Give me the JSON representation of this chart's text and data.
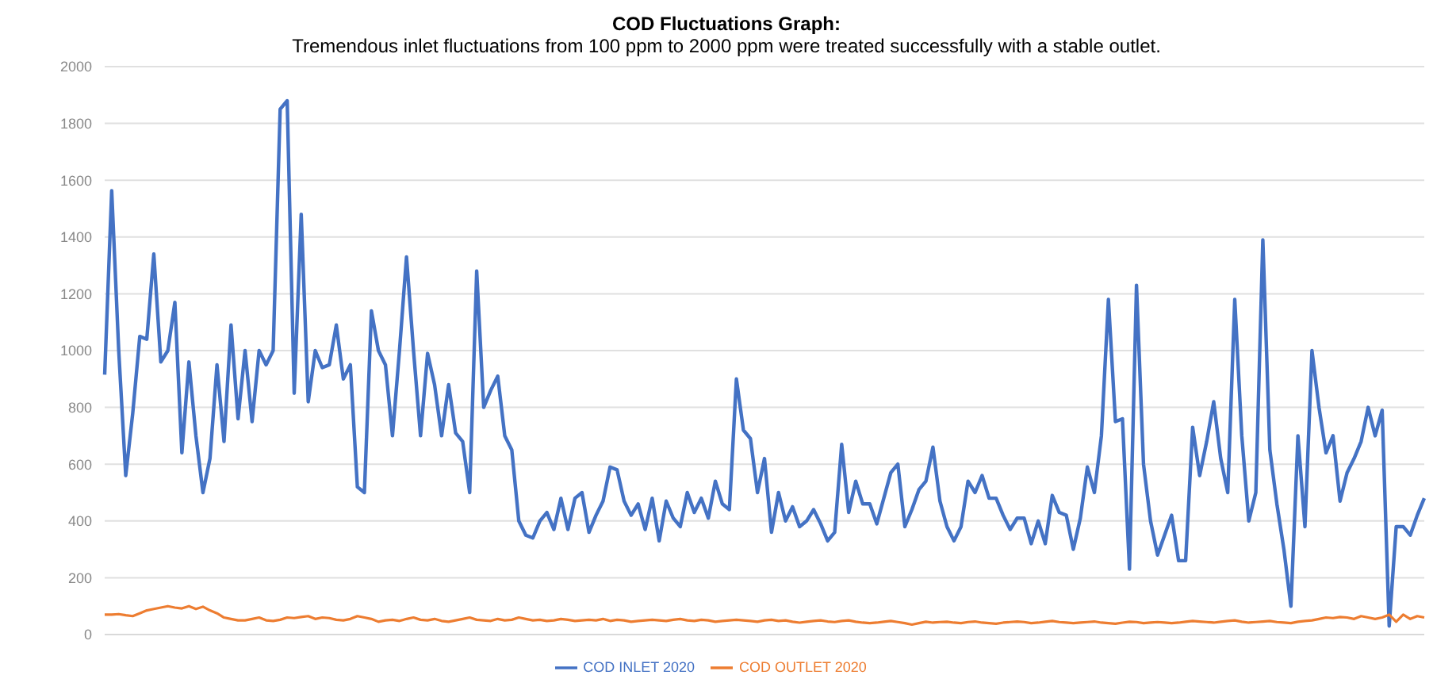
{
  "chart_data": {
    "type": "line",
    "title": "COD Fluctuations Graph:",
    "subtitle": "Tremendous inlet fluctuations from 100 ppm to 2000 ppm were treated successfully with a stable outlet.",
    "categories": [
      null,
      null,
      null,
      null,
      null,
      null,
      null,
      null,
      null,
      null,
      null,
      null,
      null,
      null,
      null,
      null,
      null,
      null,
      null,
      null,
      null,
      null,
      null,
      null,
      null,
      null,
      null,
      null,
      null,
      null,
      null,
      null,
      null,
      null,
      null,
      null,
      null,
      null,
      null,
      null,
      null,
      null,
      null,
      null,
      null,
      null,
      null,
      null,
      null,
      null,
      null,
      null,
      null,
      null,
      null,
      null,
      null,
      null,
      null,
      null,
      null,
      null,
      null,
      null,
      null,
      null,
      null,
      null,
      null,
      null,
      null,
      null,
      null,
      null,
      null,
      null,
      null,
      null,
      null,
      null,
      null,
      null,
      null,
      null,
      null,
      null,
      null,
      null,
      null,
      null,
      null,
      null,
      null,
      null,
      null,
      null,
      null,
      null,
      null,
      null,
      null,
      null,
      null,
      null,
      null,
      null,
      null,
      null,
      null,
      null,
      null,
      null,
      null,
      null,
      null,
      null,
      null,
      null,
      null,
      null,
      null,
      null,
      null,
      null,
      null,
      null,
      null,
      null,
      null,
      null,
      null,
      null,
      null,
      null,
      null,
      null,
      null,
      null,
      null,
      null,
      null,
      null,
      null,
      null,
      null,
      null,
      null,
      null,
      null,
      null,
      null,
      null,
      null,
      null,
      null,
      null,
      null,
      null,
      null,
      null,
      null,
      null,
      null,
      null,
      null,
      null,
      null,
      null,
      null,
      null,
      null,
      null,
      null,
      null,
      null,
      null,
      null,
      null,
      null,
      null,
      null,
      null,
      null,
      null,
      null,
      null,
      null,
      null,
      null
    ],
    "series": [
      {
        "name": "COD INLET 2020",
        "color": "#4472c4",
        "values": [
          915,
          1563,
          1000,
          560,
          780,
          1050,
          1040,
          1340,
          960,
          1000,
          1170,
          640,
          960,
          700,
          500,
          620,
          950,
          680,
          1090,
          760,
          1000,
          750,
          1000,
          950,
          1000,
          1850,
          1880,
          850,
          1480,
          820,
          1000,
          940,
          950,
          1090,
          900,
          950,
          520,
          500,
          1140,
          1000,
          950,
          700,
          1000,
          1330,
          1000,
          700,
          990,
          880,
          700,
          880,
          710,
          680,
          500,
          1280,
          800,
          860,
          910,
          700,
          650,
          400,
          350,
          340,
          400,
          430,
          370,
          480,
          370,
          480,
          500,
          360,
          420,
          470,
          590,
          580,
          470,
          420,
          460,
          370,
          480,
          330,
          470,
          410,
          380,
          500,
          430,
          480,
          410,
          540,
          460,
          440,
          900,
          720,
          690,
          500,
          620,
          360,
          500,
          400,
          450,
          380,
          400,
          440,
          390,
          330,
          360,
          670,
          430,
          540,
          460,
          460,
          390,
          480,
          570,
          600,
          380,
          440,
          510,
          540,
          660,
          470,
          380,
          330,
          380,
          540,
          500,
          560,
          480,
          480,
          420,
          370,
          410,
          410,
          320,
          400,
          320,
          490,
          430,
          420,
          300,
          410,
          590,
          500,
          700,
          1180,
          750,
          760,
          230,
          1230,
          600,
          400,
          280,
          350,
          420,
          260,
          260,
          730,
          560,
          680,
          820,
          620,
          500,
          1180,
          700,
          400,
          500,
          1390,
          650,
          460,
          300,
          100,
          700,
          380,
          1000,
          800,
          640,
          700,
          470,
          570,
          620,
          680,
          800,
          700,
          790,
          30,
          380,
          380,
          350,
          420,
          480
        ]
      },
      {
        "name": "COD OUTLET 2020",
        "color": "#ed7d31",
        "values": [
          70,
          70,
          72,
          68,
          65,
          75,
          85,
          90,
          95,
          100,
          95,
          92,
          100,
          90,
          98,
          85,
          75,
          60,
          55,
          50,
          50,
          55,
          60,
          50,
          48,
          52,
          60,
          58,
          62,
          65,
          55,
          60,
          58,
          52,
          50,
          55,
          65,
          60,
          55,
          45,
          50,
          52,
          48,
          55,
          60,
          52,
          50,
          55,
          48,
          45,
          50,
          55,
          60,
          52,
          50,
          48,
          55,
          50,
          52,
          60,
          55,
          50,
          52,
          48,
          50,
          55,
          52,
          48,
          50,
          52,
          50,
          55,
          48,
          52,
          50,
          45,
          48,
          50,
          52,
          50,
          48,
          52,
          55,
          50,
          48,
          52,
          50,
          45,
          48,
          50,
          52,
          50,
          48,
          45,
          50,
          52,
          48,
          50,
          45,
          42,
          45,
          48,
          50,
          46,
          44,
          48,
          50,
          45,
          42,
          40,
          42,
          45,
          48,
          44,
          40,
          35,
          40,
          45,
          42,
          44,
          45,
          42,
          40,
          44,
          46,
          42,
          40,
          38,
          42,
          44,
          46,
          44,
          40,
          42,
          45,
          48,
          44,
          42,
          40,
          42,
          44,
          46,
          42,
          40,
          38,
          42,
          45,
          44,
          40,
          42,
          44,
          42,
          40,
          42,
          45,
          48,
          46,
          44,
          42,
          45,
          48,
          50,
          45,
          42,
          44,
          46,
          48,
          44,
          42,
          40,
          45,
          48,
          50,
          55,
          60,
          58,
          62,
          60,
          55,
          65,
          60,
          55,
          60,
          70,
          45,
          70,
          55,
          65,
          60
        ]
      }
    ],
    "ylim": [
      0,
      2000
    ],
    "yticks": [
      0,
      200,
      400,
      600,
      800,
      1000,
      1200,
      1400,
      1600,
      1800,
      2000
    ],
    "grid": "y",
    "legend": "bottom",
    "marker": "none",
    "line_style": "solid"
  }
}
